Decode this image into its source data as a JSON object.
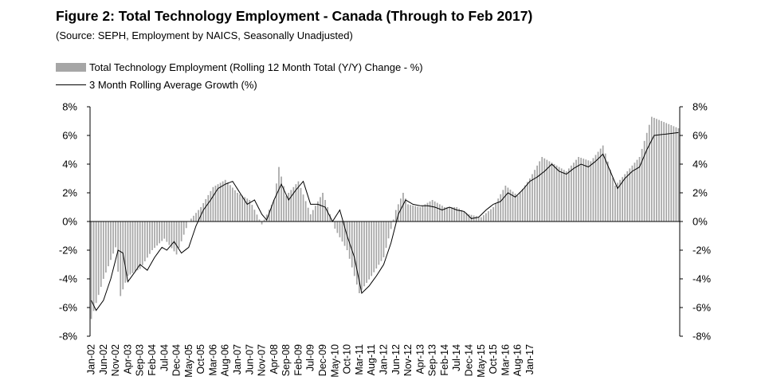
{
  "chart_data": {
    "type": "bar",
    "title": "Figure 2: Total Technology Employment - Canada (Through to Feb 2017)",
    "subtitle": "(Source: SEPH, Employment by NAICS, Seasonally Unadjusted)",
    "legend_placement": "top-left",
    "grid": false,
    "ylim": [
      -8,
      8
    ],
    "y_ticks": [
      8,
      6,
      4,
      2,
      0,
      -2,
      -4,
      -6,
      -8
    ],
    "y_tick_labels": [
      "8%",
      "6%",
      "4%",
      "2%",
      "0%",
      "-2%",
      "-4%",
      "-6%",
      "-8%"
    ],
    "x_tick_labels": [
      "Jan-02",
      "Jun-02",
      "Nov-02",
      "Apr-03",
      "Sep-03",
      "Feb-04",
      "Jul-04",
      "Dec-04",
      "May-05",
      "Oct-05",
      "Mar-06",
      "Aug-06",
      "Jan-07",
      "Jun-07",
      "Nov-07",
      "Apr-08",
      "Sep-08",
      "Feb-09",
      "Jul-09",
      "Dec-09",
      "May-10",
      "Oct-10",
      "Mar-11",
      "Aug-11",
      "Jan-12",
      "Jun-12",
      "Nov-12",
      "Apr-13",
      "Sep-13",
      "Feb-14",
      "Jul-14",
      "Dec-14",
      "May-15",
      "Oct-15",
      "Mar-16",
      "Aug-16",
      "Jan-17"
    ],
    "series": [
      {
        "name": "Total Technology Employment (Rolling 12 Month Total (Y/Y) Change - %)",
        "kind": "bar",
        "color": "#a6a6a6",
        "anchors": [
          [
            0,
            -6.8
          ],
          [
            5,
            -4.0
          ],
          [
            10,
            -1.8
          ],
          [
            12,
            -5.2
          ],
          [
            15,
            -3.8
          ],
          [
            20,
            -3.3
          ],
          [
            25,
            -2.0
          ],
          [
            30,
            -1.2
          ],
          [
            35,
            -2.3
          ],
          [
            40,
            0.0
          ],
          [
            45,
            1.0
          ],
          [
            50,
            2.4
          ],
          [
            55,
            2.9
          ],
          [
            60,
            2.0
          ],
          [
            65,
            1.5
          ],
          [
            70,
            -0.2
          ],
          [
            75,
            1.5
          ],
          [
            77,
            3.8
          ],
          [
            80,
            1.8
          ],
          [
            85,
            2.8
          ],
          [
            90,
            0.5
          ],
          [
            95,
            2.0
          ],
          [
            100,
            -0.5
          ],
          [
            105,
            -2.0
          ],
          [
            110,
            -5.0
          ],
          [
            115,
            -3.8
          ],
          [
            120,
            -2.5
          ],
          [
            125,
            0.8
          ],
          [
            128,
            2.0
          ],
          [
            130,
            1.2
          ],
          [
            135,
            1.0
          ],
          [
            140,
            1.5
          ],
          [
            145,
            1.0
          ],
          [
            150,
            1.0
          ],
          [
            155,
            0.5
          ],
          [
            160,
            0.3
          ],
          [
            165,
            1.0
          ],
          [
            170,
            2.5
          ],
          [
            175,
            1.8
          ],
          [
            180,
            3.0
          ],
          [
            185,
            4.5
          ],
          [
            190,
            4.0
          ],
          [
            195,
            3.5
          ],
          [
            200,
            4.5
          ],
          [
            205,
            4.2
          ],
          [
            210,
            5.3
          ],
          [
            215,
            2.5
          ],
          [
            220,
            3.5
          ],
          [
            225,
            4.5
          ],
          [
            230,
            7.3
          ],
          [
            241,
            6.5
          ]
        ]
      },
      {
        "name": "3 Month Rolling Average Growth (%)",
        "kind": "line",
        "color": "#000000",
        "anchors": [
          [
            0,
            -5.5
          ],
          [
            2,
            -6.2
          ],
          [
            5,
            -5.5
          ],
          [
            8,
            -4.0
          ],
          [
            11,
            -2.0
          ],
          [
            13,
            -2.2
          ],
          [
            15,
            -4.2
          ],
          [
            18,
            -3.5
          ],
          [
            20,
            -3.0
          ],
          [
            23,
            -3.4
          ],
          [
            26,
            -2.5
          ],
          [
            29,
            -1.8
          ],
          [
            31,
            -2.0
          ],
          [
            34,
            -1.4
          ],
          [
            37,
            -2.2
          ],
          [
            40,
            -1.8
          ],
          [
            43,
            -0.3
          ],
          [
            46,
            0.8
          ],
          [
            49,
            1.5
          ],
          [
            52,
            2.3
          ],
          [
            55,
            2.6
          ],
          [
            58,
            2.8
          ],
          [
            61,
            2.0
          ],
          [
            64,
            1.2
          ],
          [
            67,
            1.5
          ],
          [
            70,
            0.5
          ],
          [
            72,
            0.1
          ],
          [
            75,
            1.5
          ],
          [
            78,
            2.6
          ],
          [
            81,
            1.5
          ],
          [
            84,
            2.2
          ],
          [
            87,
            2.8
          ],
          [
            90,
            1.2
          ],
          [
            93,
            1.2
          ],
          [
            96,
            1.0
          ],
          [
            99,
            0.0
          ],
          [
            102,
            0.8
          ],
          [
            105,
            -1.0
          ],
          [
            108,
            -2.5
          ],
          [
            111,
            -5.0
          ],
          [
            114,
            -4.5
          ],
          [
            117,
            -3.8
          ],
          [
            120,
            -3.0
          ],
          [
            123,
            -1.5
          ],
          [
            126,
            0.5
          ],
          [
            129,
            1.5
          ],
          [
            132,
            1.2
          ],
          [
            135,
            1.1
          ],
          [
            138,
            1.1
          ],
          [
            141,
            1.0
          ],
          [
            144,
            0.8
          ],
          [
            147,
            1.0
          ],
          [
            150,
            0.8
          ],
          [
            153,
            0.7
          ],
          [
            156,
            0.2
          ],
          [
            159,
            0.3
          ],
          [
            162,
            0.8
          ],
          [
            165,
            1.2
          ],
          [
            168,
            1.4
          ],
          [
            171,
            2.0
          ],
          [
            174,
            1.7
          ],
          [
            177,
            2.2
          ],
          [
            180,
            2.8
          ],
          [
            183,
            3.1
          ],
          [
            186,
            3.5
          ],
          [
            189,
            4.0
          ],
          [
            192,
            3.5
          ],
          [
            195,
            3.3
          ],
          [
            198,
            3.7
          ],
          [
            201,
            4.0
          ],
          [
            204,
            3.8
          ],
          [
            207,
            4.2
          ],
          [
            210,
            4.7
          ],
          [
            213,
            3.5
          ],
          [
            216,
            2.3
          ],
          [
            219,
            3.0
          ],
          [
            222,
            3.5
          ],
          [
            225,
            3.8
          ],
          [
            228,
            5.0
          ],
          [
            231,
            6.0
          ],
          [
            241,
            6.2
          ]
        ]
      }
    ]
  },
  "legend": {
    "bar_label": "Total Technology Employment (Rolling 12 Month Total (Y/Y) Change - %)",
    "line_label": "3 Month Rolling Average Growth (%)"
  }
}
